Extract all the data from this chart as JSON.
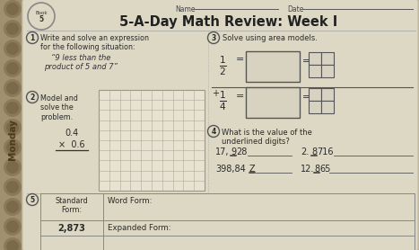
{
  "bg_color": "#b8a888",
  "paper_color": "#ddd8c4",
  "title": "5-A-Day Math Review: Week I",
  "name_label": "Name",
  "date_label": "Date",
  "monday_label": "Monday",
  "section1_title": "Write and solve an expression\nfor the following situation:",
  "section1_body": "“9 less than the\nproduct of 5 and 7”",
  "section2_title": "Model and\nsolve the\nproblem.",
  "section3_title": "Solve using area models.",
  "section4_title": "What is the value of the\nunderlined digits?",
  "section5_standard": "Standard\nForm:",
  "section5_value": "2,873",
  "section5_word": "Word Form:",
  "section5_expanded": "Expanded Form:",
  "left_strip_color": "#a09070",
  "grid_color": "#c4b89a",
  "paper_edge_color": "#c8c0a8",
  "title_color": "#222222",
  "text_color": "#2a2a2a",
  "circle_edge_color": "#555555"
}
